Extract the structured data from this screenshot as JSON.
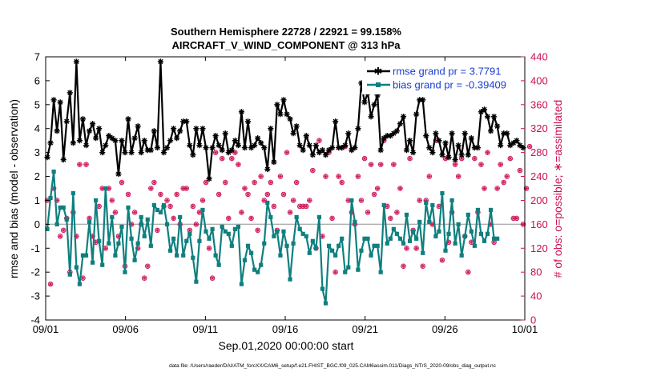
{
  "chart_data": {
    "type": "line",
    "title": "Southern Hemisphere 22728 / 22921 = 99.158%",
    "subtitle": "AIRCRAFT_V_WIND_COMPONENT @ 313 hPa",
    "xlabel": "Sep.01,2020 00:00:00 start",
    "ylabel": "rmse and bias (model - observation)",
    "y2label": "# of obs: o=possible; ∗=assimilated",
    "footer": "data file: /Users/raeder/DAI/ATM_forcXX/CAM6_setup/f.e21.FHIST_BGC.f09_025.CAM6assim.011/Diags_NTrS_2020-09/obs_diag_output.nc",
    "xlim": [
      0,
      30
    ],
    "ylim": [
      -4,
      7
    ],
    "y2lim": [
      0,
      440
    ],
    "x_ticks": [
      "09/01",
      "09/06",
      "09/11",
      "09/16",
      "09/21",
      "09/26",
      "10/01"
    ],
    "y_ticks": [
      "-4",
      "-3",
      "-2",
      "-1",
      "0",
      "1",
      "2",
      "3",
      "4",
      "5",
      "6",
      "7"
    ],
    "y2_ticks": [
      "0",
      "40",
      "80",
      "120",
      "160",
      "200",
      "240",
      "280",
      "320",
      "360",
      "400",
      "440"
    ],
    "legend_position": "top-right",
    "colors": {
      "rmse": "#000000",
      "bias": "#0f7f7f",
      "obs": "#cc0f55",
      "zero": "#b0b0b0",
      "legend_text": "#1a3fd0"
    },
    "series": [
      {
        "name": "rmse grand pr = 3.7791",
        "values": [
          2.8,
          3.4,
          5.2,
          3.9,
          5.1,
          2.7,
          4.3,
          5.5,
          3.4,
          6.8,
          3.5,
          4.4,
          3.3,
          3.9,
          4.2,
          3.6,
          4.0,
          3.0,
          3.3,
          3.7,
          3.6,
          3.5,
          2.1,
          3.5,
          3.0,
          4.4,
          3.0,
          3.6,
          4.1,
          3.0,
          3.5,
          3.1,
          3.1,
          3.9,
          3.2,
          6.8,
          3.0,
          3.2,
          3.5,
          4.0,
          3.6,
          3.9,
          4.3,
          4.3,
          3.3,
          2.9,
          4.0,
          3.3,
          4.0,
          3.2,
          1.9,
          3.2,
          3.7,
          3.3,
          3.1,
          3.8,
          3.0,
          3.1,
          3.5,
          3.3,
          4.7,
          3.2,
          4.3,
          3.2,
          3.3,
          3.6,
          3.4,
          3.2,
          2.3,
          4.0,
          2.6,
          5.0,
          4.6,
          5.2,
          4.6,
          4.4,
          3.8,
          4.1,
          3.3,
          3.1,
          3.7,
          3.3,
          2.9,
          3.3,
          3.0,
          3.1,
          2.9,
          3.1,
          3.2,
          4.3,
          3.2,
          3.2,
          3.3,
          3.8,
          3.1,
          3.2,
          4.0,
          5.9,
          5.1,
          5.5,
          4.5,
          5.0,
          5.4,
          3.1,
          3.6,
          3.7,
          3.7,
          3.8,
          3.9,
          4.2,
          4.5,
          3.1,
          3.5,
          3.0,
          4.6,
          5.2,
          5.2,
          3.7,
          3.2,
          3.0,
          3.8,
          3.5,
          2.9,
          3.4,
          2.8,
          3.8,
          2.7,
          3.3,
          2.9,
          3.8,
          2.9,
          3.6,
          3.2,
          3.2,
          4.7,
          4.8,
          4.5,
          3.9,
          4.5,
          4.1,
          3.3,
          3.8,
          3.8,
          3.3,
          3.4,
          3.5,
          3.3,
          3.2
        ]
      },
      {
        "name": "bias grand pr = -0.39409",
        "values": [
          -0.2,
          1.1,
          2.2,
          0.0,
          0.7,
          0.7,
          0.2,
          -2.1,
          1.3,
          -1.8,
          -2.5,
          -1.3,
          -1.3,
          0.1,
          -1.6,
          1.0,
          -0.7,
          -1.7,
          1.5,
          -0.8,
          0.3,
          -1.3,
          -0.8,
          -0.1,
          -2.0,
          0.7,
          -0.6,
          -1.5,
          -0.8,
          0.3,
          -0.5,
          0.2,
          -0.9,
          0.8,
          0.6,
          0.5,
          0.8,
          0.0,
          -1.1,
          -0.6,
          -1.3,
          0.3,
          -1.3,
          -0.7,
          -0.4,
          -1.4,
          -2.4,
          -0.7,
          0.6,
          -0.3,
          -0.6,
          -0.2,
          -1.3,
          -1.7,
          -0.1,
          -0.3,
          -0.4,
          -0.9,
          -0.2,
          -0.1,
          -2.5,
          -1.5,
          -0.9,
          -1.2,
          -1.9,
          -2.0,
          -1.7,
          -0.8,
          0.9,
          0.3,
          -0.5,
          -0.3,
          -1.3,
          -0.3,
          -0.9,
          -2.3,
          -0.8,
          0.3,
          -0.2,
          -0.4,
          -0.5,
          -1.2,
          -0.7,
          -1.0,
          0.3,
          -2.7,
          -3.3,
          -0.9,
          -1.1,
          -1.3,
          -0.9,
          -0.6,
          -2.0,
          -1.8,
          1.0,
          0.1,
          -1.9,
          -1.1,
          -0.6,
          -0.6,
          -1.3,
          -0.9,
          -0.9,
          -2.0,
          0.8,
          -0.8,
          -0.6,
          -0.2,
          -0.4,
          -0.6,
          -0.8,
          0.4,
          -0.7,
          -0.3,
          -0.6,
          0.1,
          -1.2,
          0.9,
          0.1,
          0.8,
          -0.5,
          -0.3,
          1.3,
          -1.1,
          -0.4,
          1.0,
          -0.8,
          0.0,
          -1.3,
          -0.5,
          0.4,
          -0.3,
          -0.9,
          0.6,
          -0.4,
          -0.7,
          -0.4,
          0.6,
          -0.6,
          -0.6
        ]
      }
    ],
    "obs_possible": [
      200,
      60,
      220,
      200,
      140,
      150,
      170,
      80,
      180,
      140,
      260,
      70,
      260,
      170,
      140,
      130,
      190,
      220,
      120,
      220,
      200,
      180,
      140,
      230,
      90,
      210,
      160,
      180,
      120,
      160,
      70,
      90,
      220,
      230,
      150,
      210,
      190,
      200,
      190,
      170,
      210,
      160,
      220,
      220,
      150,
      190,
      160,
      180,
      200,
      230,
      120,
      70,
      280,
      210,
      270,
      230,
      170,
      270,
      280,
      260,
      180,
      220,
      210,
      170,
      230,
      150,
      240,
      200,
      210,
      230,
      190,
      150,
      240,
      210,
      280,
      180,
      200,
      230,
      190,
      190,
      190,
      200,
      250,
      120,
      300,
      140,
      240,
      280,
      170,
      80,
      240,
      230,
      290,
      200,
      180,
      160,
      240,
      200,
      270,
      180,
      260,
      210,
      220,
      260,
      300,
      190,
      170,
      260,
      180,
      220,
      90,
      120,
      270,
      150,
      120,
      200,
      90,
      200,
      240,
      160,
      300,
      190,
      100,
      270,
      130,
      180,
      260,
      240,
      270,
      140,
      80,
      130,
      270,
      180,
      260,
      220,
      280,
      160,
      130,
      220,
      260,
      230,
      240,
      270,
      170,
      170,
      250,
      160,
      220,
      290
    ],
    "obs_assimilated": [
      200,
      60,
      220,
      200,
      140,
      150,
      170,
      80,
      180,
      140,
      260,
      70,
      260,
      170,
      140,
      130,
      190,
      220,
      120,
      220,
      200,
      180,
      140,
      230,
      90,
      210,
      160,
      180,
      120,
      160,
      70,
      90,
      220,
      230,
      150,
      210,
      190,
      200,
      190,
      170,
      210,
      160,
      220,
      220,
      150,
      190,
      160,
      180,
      200,
      230,
      120,
      70,
      280,
      210,
      270,
      230,
      170,
      270,
      280,
      260,
      180,
      220,
      210,
      170,
      230,
      150,
      240,
      200,
      210,
      230,
      190,
      150,
      240,
      210,
      280,
      180,
      200,
      230,
      190,
      190,
      190,
      200,
      250,
      120,
      300,
      140,
      240,
      280,
      170,
      80,
      240,
      230,
      290,
      200,
      180,
      160,
      240,
      200,
      270,
      180,
      260,
      210,
      220,
      260,
      300,
      190,
      170,
      260,
      180,
      220,
      90,
      120,
      270,
      150,
      120,
      200,
      90,
      200,
      240,
      160,
      300,
      190,
      100,
      270,
      130,
      180,
      260,
      240,
      270,
      140,
      80,
      130,
      270,
      180,
      260,
      220,
      280,
      160,
      130,
      220,
      260,
      230,
      240,
      270,
      170,
      170,
      250,
      160,
      220,
      290
    ]
  }
}
